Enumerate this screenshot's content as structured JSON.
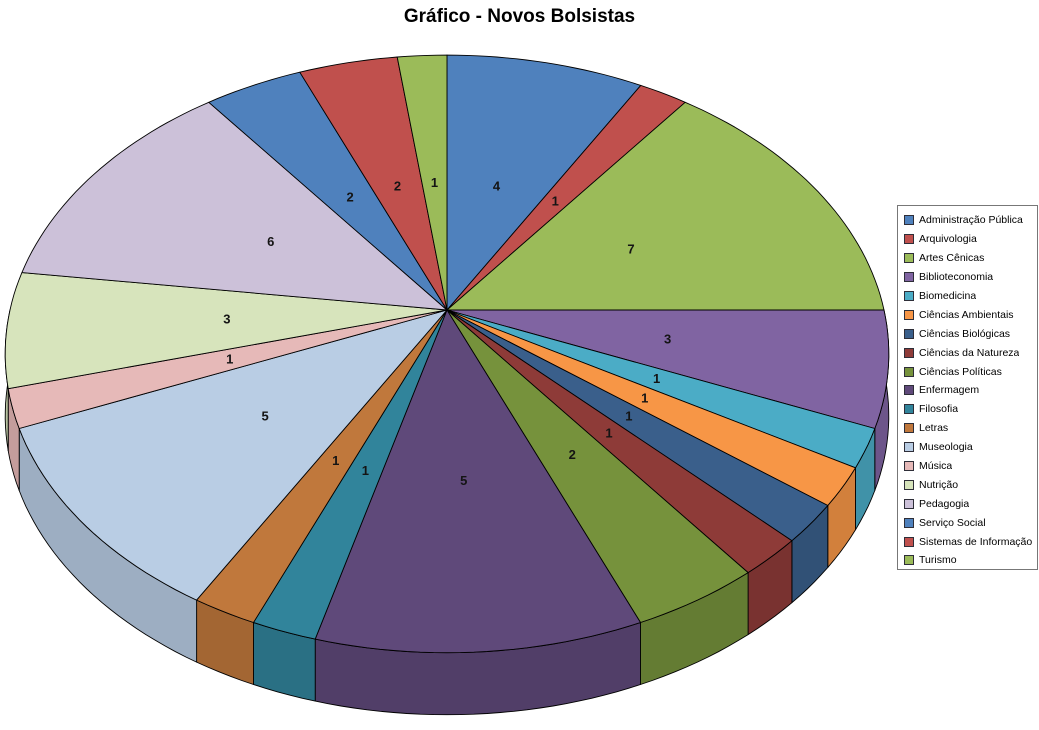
{
  "chart_data": {
    "type": "pie",
    "is_3d": true,
    "title": "Gráfico - Novos Bolsistas",
    "legend_position": "right",
    "direction": "clockwise",
    "start_angle_deg": 0,
    "total": 48,
    "data_labels": "value",
    "slices": [
      {
        "label": "Administração Pública",
        "value": 4,
        "color": "#4F81BD"
      },
      {
        "label": "Arquivologia",
        "value": 1,
        "color": "#C0504D"
      },
      {
        "label": "Artes Cênicas",
        "value": 7,
        "color": "#9BBB59"
      },
      {
        "label": "Biblioteconomia",
        "value": 3,
        "color": "#8064A2"
      },
      {
        "label": "Biomedicina",
        "value": 1,
        "color": "#4BACC6"
      },
      {
        "label": "Ciências Ambientais",
        "value": 1,
        "color": "#F79646"
      },
      {
        "label": "Ciências Biológicas",
        "value": 1,
        "color": "#3A5F8B"
      },
      {
        "label": "Ciências da Natureza",
        "value": 1,
        "color": "#8E3B38"
      },
      {
        "label": "Ciências Políticas",
        "value": 2,
        "color": "#76923C"
      },
      {
        "label": "Enfermagem",
        "value": 5,
        "color": "#5F497A"
      },
      {
        "label": "Filosofia",
        "value": 1,
        "color": "#31849B"
      },
      {
        "label": "Letras",
        "value": 1,
        "color": "#C0783C"
      },
      {
        "label": "Museologia",
        "value": 5,
        "color": "#B9CDE4"
      },
      {
        "label": "Música",
        "value": 1,
        "color": "#E6B9B8"
      },
      {
        "label": "Nutrição",
        "value": 3,
        "color": "#D7E4BC"
      },
      {
        "label": "Pedagogia",
        "value": 6,
        "color": "#CCC1D9"
      },
      {
        "label": "Serviço Social",
        "value": 2,
        "color": "#4F81BD"
      },
      {
        "label": "Sistemas de Informação",
        "value": 2,
        "color": "#C0504D"
      },
      {
        "label": "Turismo",
        "value": 1,
        "color": "#9BBB59"
      }
    ]
  }
}
